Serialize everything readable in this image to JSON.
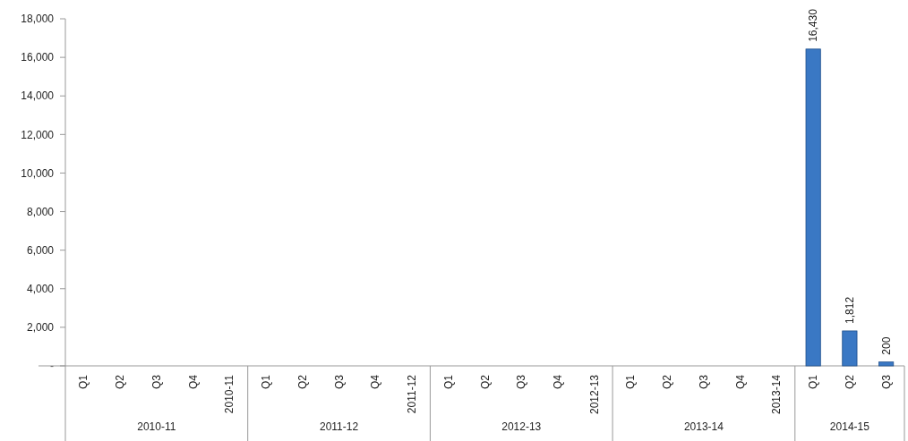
{
  "chart_data": {
    "type": "bar",
    "categories": [
      "Q1",
      "Q2",
      "Q3",
      "Q4",
      "2010-11",
      "Q1",
      "Q2",
      "Q3",
      "Q4",
      "2011-12",
      "Q1",
      "Q2",
      "Q3",
      "Q4",
      "2012-13",
      "Q1",
      "Q2",
      "Q3",
      "Q4",
      "2013-14",
      "Q1",
      "Q2",
      "Q3"
    ],
    "values": [
      null,
      null,
      null,
      null,
      null,
      null,
      null,
      null,
      null,
      null,
      null,
      null,
      null,
      null,
      null,
      null,
      null,
      null,
      null,
      null,
      16430,
      1812,
      200
    ],
    "color": "#3a78c4",
    "ylim": [
      0,
      18000
    ],
    "yticks": [
      {
        "value": 0,
        "label": "-"
      },
      {
        "value": 2000,
        "label": "2,000"
      },
      {
        "value": 4000,
        "label": "4,000"
      },
      {
        "value": 6000,
        "label": "6,000"
      },
      {
        "value": 8000,
        "label": "8,000"
      },
      {
        "value": 10000,
        "label": "10,000"
      },
      {
        "value": 12000,
        "label": "12,000"
      },
      {
        "value": 14000,
        "label": "14,000"
      },
      {
        "value": 16000,
        "label": "16,000"
      },
      {
        "value": 18000,
        "label": "18,000"
      }
    ],
    "value_labels": [
      null,
      null,
      null,
      null,
      null,
      null,
      null,
      null,
      null,
      null,
      null,
      null,
      null,
      null,
      null,
      null,
      null,
      null,
      null,
      null,
      "16,430",
      "1,812",
      "200"
    ],
    "annotations": [
      "2010-11",
      "2011-12",
      "2012-13",
      "2013-14",
      "2014-15"
    ]
  }
}
